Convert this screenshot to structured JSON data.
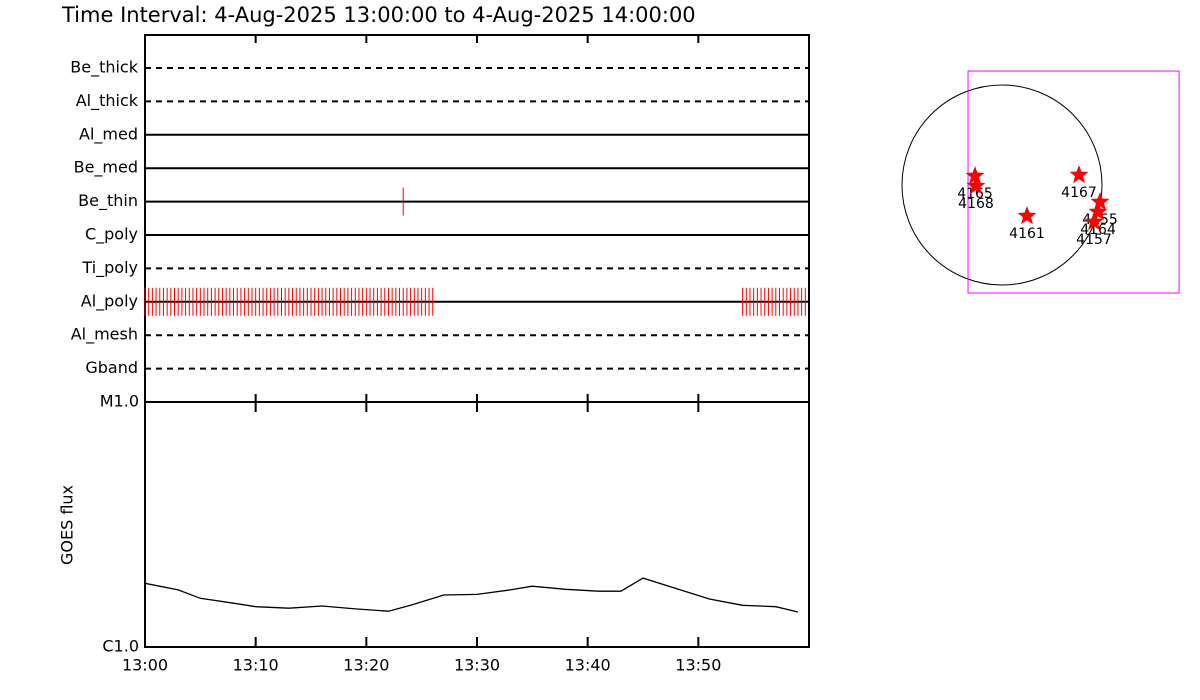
{
  "title": "Time Interval:  4-Aug-2025 13:00:00 to  4-Aug-2025 14:00:00",
  "chart_data": [
    {
      "type": "timeline",
      "categories": [
        "Be_thick",
        "Al_thick",
        "Al_med",
        "Be_med",
        "Be_thin",
        "C_poly",
        "Ti_poly",
        "Al_poly",
        "Al_mesh",
        "Gband"
      ],
      "line_styles": [
        "dashed",
        "dashed",
        "solid",
        "solid",
        "solid",
        "solid",
        "dashed",
        "solid",
        "dashed",
        "dashed"
      ],
      "color": "#ff0000",
      "xlim": [
        "13:00",
        "14:00"
      ],
      "xticks": [
        "13:00",
        "13:10",
        "13:20",
        "13:30",
        "13:40",
        "13:50"
      ],
      "exposures": [
        [],
        [],
        [],
        [],
        [
          "13:23:20"
        ],
        [],
        [],
        [
          "13:00:00",
          "13:00:20",
          "13:00:40",
          "13:01:00",
          "13:01:20",
          "13:01:40",
          "13:02:00",
          "13:02:20",
          "13:02:40",
          "13:03:00",
          "13:03:20",
          "13:03:40",
          "13:04:00",
          "13:04:20",
          "13:04:40",
          "13:05:00",
          "13:05:20",
          "13:05:40",
          "13:06:00",
          "13:06:20",
          "13:06:40",
          "13:07:00",
          "13:07:20",
          "13:07:40",
          "13:08:00",
          "13:08:20",
          "13:08:40",
          "13:09:00",
          "13:09:20",
          "13:09:40",
          "13:10:00",
          "13:10:20",
          "13:10:40",
          "13:11:00",
          "13:11:20",
          "13:11:40",
          "13:12:00",
          "13:12:20",
          "13:12:40",
          "13:13:00",
          "13:13:20",
          "13:13:40",
          "13:14:00",
          "13:14:20",
          "13:14:40",
          "13:15:00",
          "13:15:20",
          "13:15:40",
          "13:16:00",
          "13:16:20",
          "13:16:40",
          "13:17:00",
          "13:17:20",
          "13:17:40",
          "13:18:00",
          "13:18:20",
          "13:18:40",
          "13:19:00",
          "13:19:20",
          "13:19:40",
          "13:20:00",
          "13:20:20",
          "13:20:40",
          "13:21:00",
          "13:21:20",
          "13:21:40",
          "13:22:00",
          "13:22:20",
          "13:22:40",
          "13:23:00",
          "13:23:20",
          "13:23:40",
          "13:24:00",
          "13:24:20",
          "13:24:40",
          "13:25:00",
          "13:25:20",
          "13:25:40",
          "13:26:00",
          "13:54:00",
          "13:54:20",
          "13:54:40",
          "13:55:00",
          "13:55:20",
          "13:55:40",
          "13:56:00",
          "13:56:20",
          "13:56:40",
          "13:57:00",
          "13:57:20",
          "13:57:40",
          "13:58:00",
          "13:58:20",
          "13:58:40",
          "13:59:00",
          "13:59:20",
          "13:59:40"
        ],
        [],
        []
      ]
    },
    {
      "type": "line",
      "ylabel": "GOES flux",
      "log_scale": true,
      "color": "#000000",
      "x": [
        "13:00",
        "13:03",
        "13:05",
        "13:08",
        "13:10",
        "13:13",
        "13:16",
        "13:19",
        "13:22",
        "13:24",
        "13:27",
        "13:30",
        "13:33",
        "13:35",
        "13:38",
        "13:41",
        "13:43",
        "13:45",
        "13:51",
        "13:54",
        "13:57",
        "13:59"
      ],
      "values": [
        1.82e-06,
        1.71e-06,
        1.58e-06,
        1.51e-06,
        1.46e-06,
        1.44e-06,
        1.47e-06,
        1.43e-06,
        1.4e-06,
        1.48e-06,
        1.63e-06,
        1.64e-06,
        1.71e-06,
        1.77e-06,
        1.72e-06,
        1.69e-06,
        1.69e-06,
        1.91e-06,
        1.57e-06,
        1.48e-06,
        1.46e-06,
        1.39e-06
      ],
      "xlim": [
        "13:00",
        "14:00"
      ],
      "xticks": [
        "13:00",
        "13:10",
        "13:20",
        "13:30",
        "13:40",
        "13:50"
      ],
      "ylim": [
        1e-06,
        1e-05
      ],
      "yticks": [
        {
          "value": 1e-06,
          "label": "C1.0"
        },
        {
          "value": 1e-05,
          "label": "M1.0"
        }
      ]
    },
    {
      "type": "sun-map",
      "solar_radius": 960,
      "fov_color": "#ff00ff",
      "color": "#ff0000",
      "fov_xlim": [
        -326,
        1700
      ],
      "fov_ylim": [
        -1037,
        1094
      ],
      "names": [
        "4165",
        "4168",
        "4167",
        "4161",
        "4155",
        "4164",
        "4157"
      ],
      "x": [
        -259,
        -250,
        739,
        240,
        941,
        922,
        883
      ],
      "values": [
        86,
        -10,
        96,
        -298,
        -163,
        -259,
        -355
      ]
    }
  ]
}
